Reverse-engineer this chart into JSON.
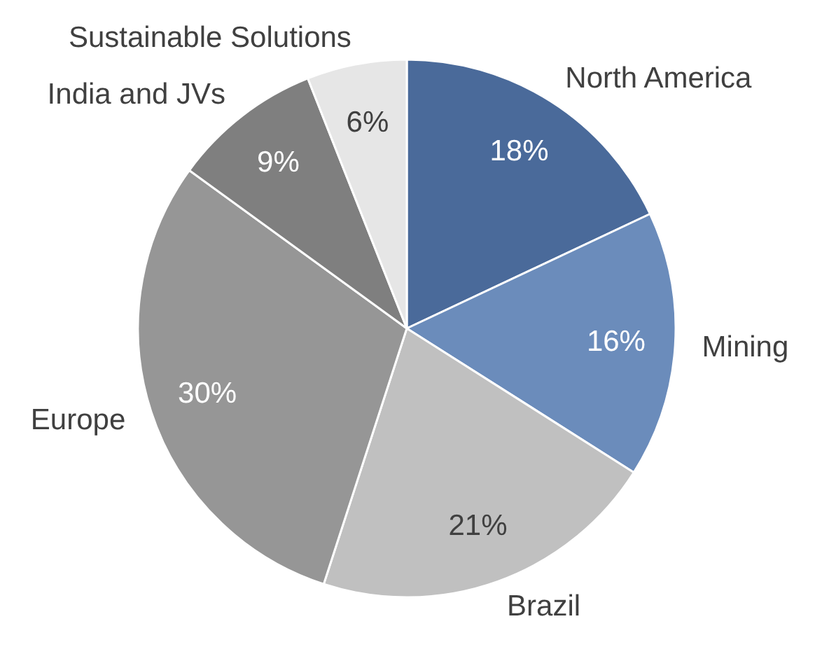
{
  "chart_data": {
    "type": "pie",
    "categories": [
      "North America",
      "Mining",
      "Brazil",
      "Europe",
      "India and JVs",
      "Sustainable Solutions"
    ],
    "values": [
      18,
      16,
      21,
      30,
      9,
      6
    ],
    "value_labels": [
      "18%",
      "16%",
      "21%",
      "30%",
      "9%",
      "6%"
    ],
    "colors": [
      "#4a6a9a",
      "#6b8cbb",
      "#c0c0c0",
      "#969696",
      "#7f7f7f",
      "#e6e6e6"
    ]
  }
}
